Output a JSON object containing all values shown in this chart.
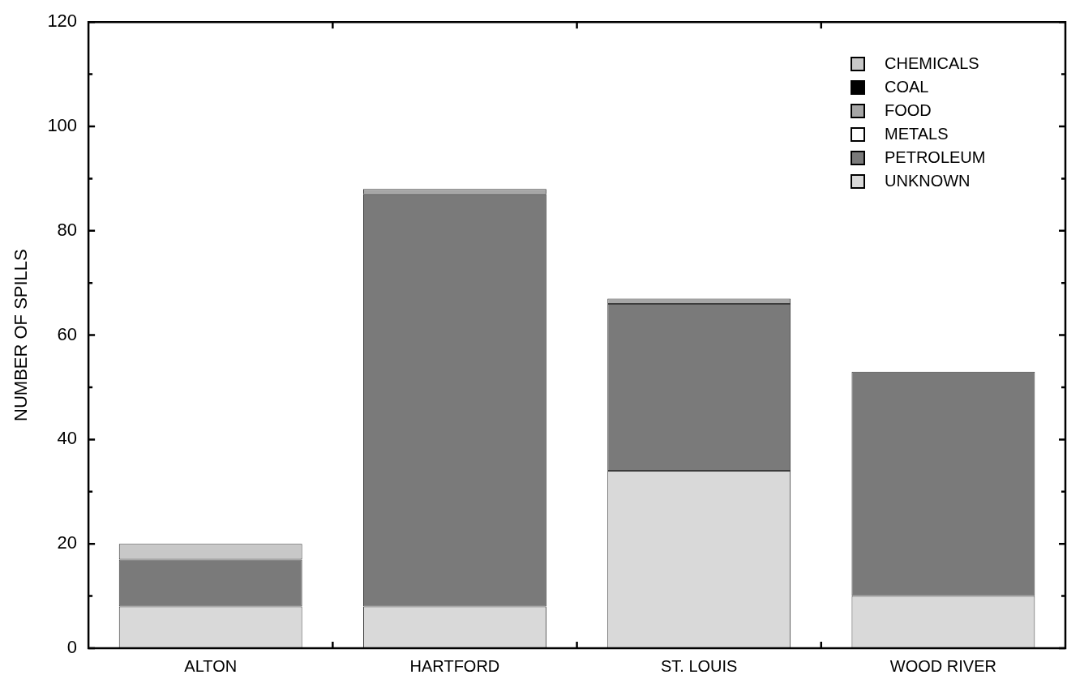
{
  "chart_data": {
    "type": "bar",
    "stacked": true,
    "ylabel": "NUMBER OF SPILLS",
    "categories": [
      "ALTON",
      "HARTFORD",
      "ST. LOUIS",
      "WOOD RIVER"
    ],
    "series": [
      {
        "name": "UNKNOWN",
        "color": "#d9d9d9",
        "values": [
          8,
          8,
          34,
          10
        ]
      },
      {
        "name": "PETROLEUM",
        "color": "#7a7a7a",
        "values": [
          9,
          79,
          32,
          43
        ]
      },
      {
        "name": "METALS",
        "color": "#ffffff",
        "values": [
          0,
          0,
          0,
          0
        ]
      },
      {
        "name": "FOOD",
        "color": "#a6a6a6",
        "values": [
          0,
          1,
          1,
          0
        ]
      },
      {
        "name": "COAL",
        "color": "#000000",
        "values": [
          0,
          0,
          0,
          0
        ]
      },
      {
        "name": "CHEMICALS",
        "color": "#c8c8c8",
        "values": [
          3,
          0,
          0,
          0
        ]
      }
    ],
    "ylim": [
      0,
      120
    ],
    "yticks": [
      0,
      {
        "value": 10,
        "label": null
      },
      20,
      {
        "value": 30,
        "label": null
      },
      40,
      {
        "value": 50,
        "label": null
      },
      60,
      {
        "value": 70,
        "label": null
      },
      80,
      {
        "value": 90,
        "label": null
      },
      100,
      {
        "value": 110,
        "label": null
      },
      120
    ],
    "legend": "top right"
  }
}
